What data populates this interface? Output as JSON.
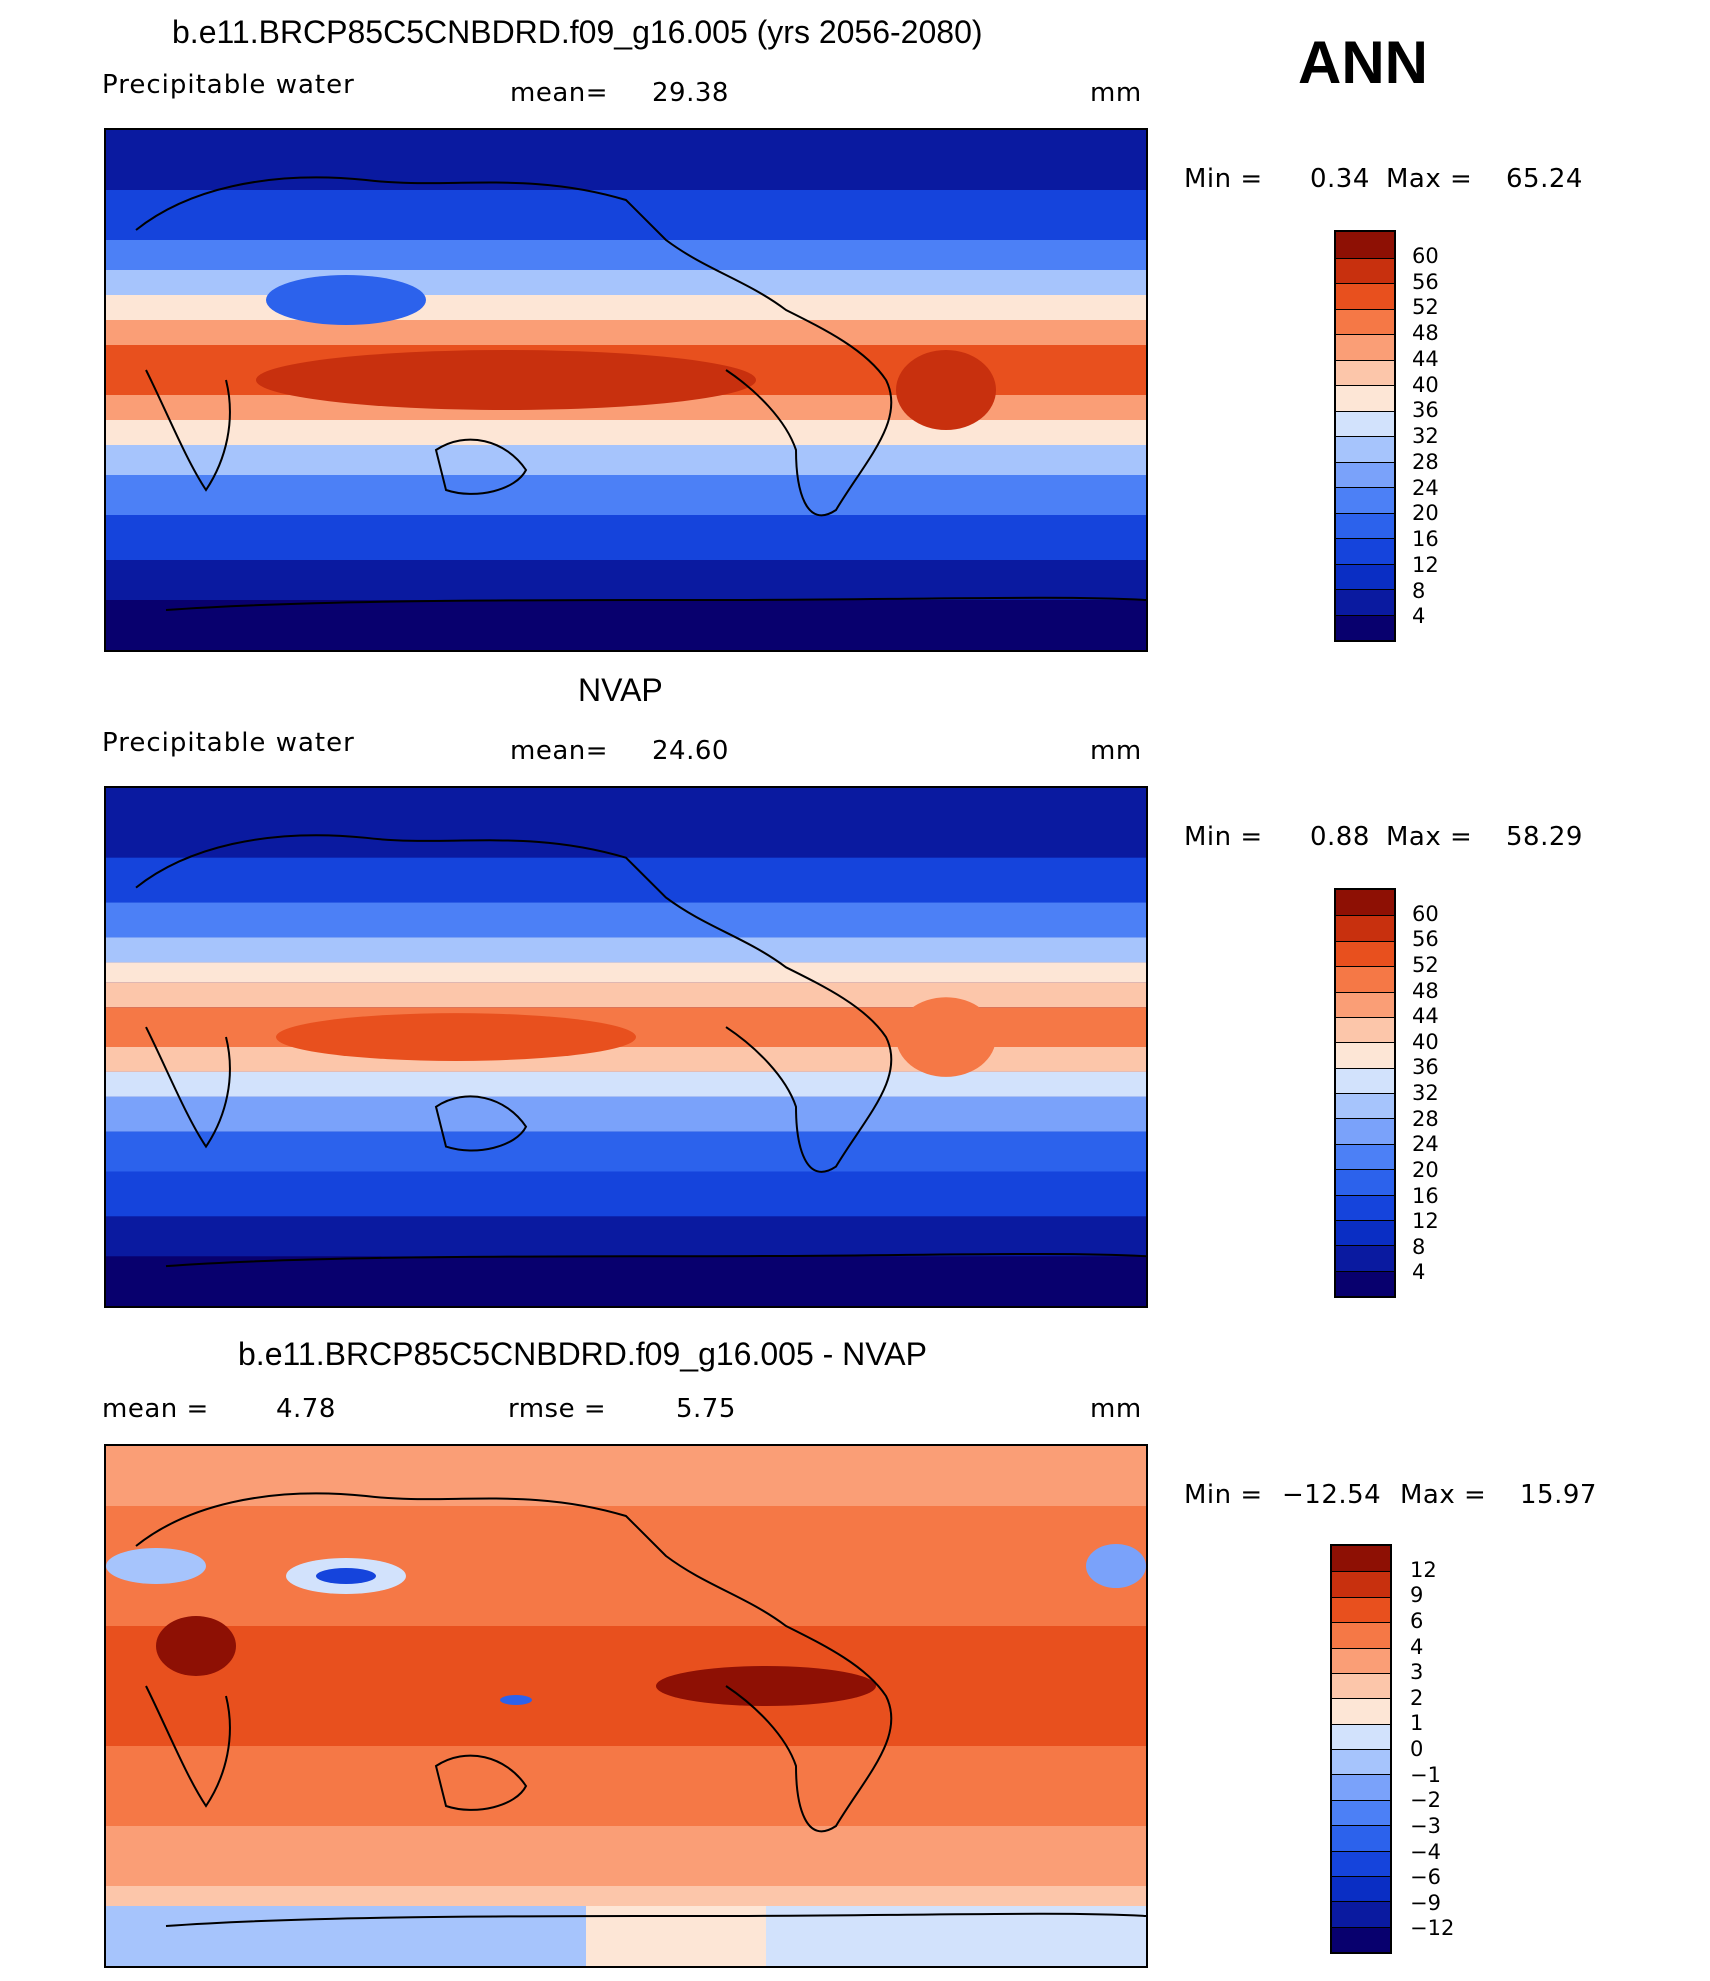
{
  "season": "ANN",
  "panels": [
    {
      "id": "model",
      "title": "b.e11.BRCP85C5CNBDRD.f09_g16.005 (yrs 2056-2080)",
      "variable": "Precipitable  water",
      "mean_label": "mean=",
      "mean_value": "29.38",
      "units": "mm",
      "min_label": "Min =",
      "min_value": "0.34",
      "max_label": "Max =",
      "max_value": "65.24",
      "colorbar_labels": [
        "60",
        "56",
        "52",
        "48",
        "44",
        "40",
        "36",
        "32",
        "28",
        "24",
        "20",
        "16",
        "12",
        "8",
        "4"
      ]
    },
    {
      "id": "obs",
      "title": "NVAP",
      "variable": "Precipitable  water",
      "mean_label": "mean=",
      "mean_value": "24.60",
      "units": "mm",
      "min_label": "Min =",
      "min_value": "0.88",
      "max_label": "Max =",
      "max_value": "58.29",
      "colorbar_labels": [
        "60",
        "56",
        "52",
        "48",
        "44",
        "40",
        "36",
        "32",
        "28",
        "24",
        "20",
        "16",
        "12",
        "8",
        "4"
      ]
    },
    {
      "id": "diff",
      "title": "b.e11.BRCP85C5CNBDRD.f09_g16.005 - NVAP",
      "mean_label": "mean =",
      "mean_value": "4.78",
      "rmse_label": "rmse =",
      "rmse_value": "5.75",
      "units": "mm",
      "min_label": "Min =",
      "min_value": "−12.54",
      "max_label": "Max =",
      "max_value": "15.97",
      "colorbar_labels": [
        "12",
        "9",
        "6",
        "4",
        "3",
        "2",
        "1",
        "0",
        "−1",
        "−2",
        "−3",
        "−4",
        "−6",
        "−9",
        "−12"
      ]
    }
  ],
  "colors": {
    "abs_scale": [
      "#08006e",
      "#0a1aa0",
      "#0a2ec4",
      "#1544dc",
      "#2c62ec",
      "#4c80f6",
      "#7aa2fa",
      "#a6c4fc",
      "#d2e2fc",
      "#fde6d6",
      "#fcc6aa",
      "#fa9e76",
      "#f57846",
      "#e8501e",
      "#c8300e",
      "#8e1004"
    ],
    "diff_scale": [
      "#08006e",
      "#0a1aa0",
      "#0a2ec4",
      "#1544dc",
      "#2c62ec",
      "#4c80f6",
      "#7aa2fa",
      "#a6c4fc",
      "#d2e2fc",
      "#fde6d6",
      "#fcc6aa",
      "#fa9e76",
      "#f57846",
      "#e8501e",
      "#c8300e",
      "#8e1004"
    ]
  }
}
